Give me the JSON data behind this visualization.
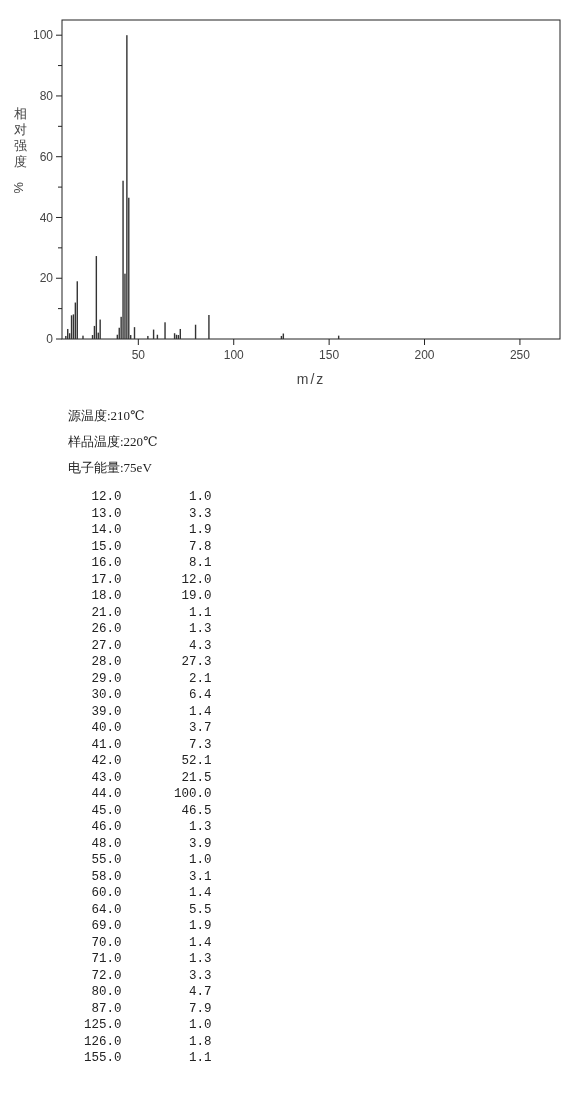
{
  "chart_data": {
    "type": "bar",
    "xlabel": "m/z",
    "ylabel": "相对强度%",
    "x": [
      12,
      13,
      14,
      15,
      16,
      17,
      18,
      21,
      26,
      27,
      28,
      29,
      30,
      39,
      40,
      41,
      42,
      43,
      44,
      45,
      46,
      48,
      55,
      58,
      60,
      64,
      69,
      70,
      71,
      72,
      80,
      87,
      125,
      126,
      155
    ],
    "values": [
      1.0,
      3.3,
      1.9,
      7.8,
      8.1,
      12.0,
      19.0,
      1.1,
      1.3,
      4.3,
      27.3,
      2.1,
      6.4,
      1.4,
      3.7,
      7.3,
      52.1,
      21.5,
      100.0,
      46.5,
      1.3,
      3.9,
      1.0,
      3.1,
      1.4,
      5.5,
      1.9,
      1.4,
      1.3,
      3.3,
      4.7,
      7.9,
      1.0,
      1.8,
      1.1
    ],
    "color": "#333333",
    "xlim": [
      10,
      271
    ],
    "xticks": [
      50,
      100,
      150,
      200,
      250
    ],
    "ylim": [
      0,
      105
    ],
    "yticks": [
      0,
      {
        "value": 10,
        "label": null
      },
      20,
      {
        "value": 30,
        "label": null
      },
      40,
      {
        "value": 50,
        "label": null
      },
      60,
      {
        "value": 70,
        "label": null
      },
      80,
      {
        "value": 90,
        "label": null
      },
      100
    ],
    "annotations": [
      "源温度:210℃",
      "样品温度:220℃",
      "电子能量:75eV",
      " 12.0         1.0",
      " 13.0         3.3",
      " 14.0         1.9",
      " 15.0         7.8",
      " 16.0         8.1",
      " 17.0        12.0",
      " 18.0        19.0",
      " 21.0         1.1",
      " 26.0         1.3",
      " 27.0         4.3",
      " 28.0        27.3",
      " 29.0         2.1",
      " 30.0         6.4",
      " 39.0         1.4",
      " 40.0         3.7",
      " 41.0         7.3",
      " 42.0        52.1",
      " 43.0        21.5",
      " 44.0       100.0",
      " 45.0        46.5",
      " 46.0         1.3",
      " 48.0         3.9",
      " 55.0         1.0",
      " 58.0         3.1",
      " 60.0         1.4",
      " 64.0         5.5",
      " 69.0         1.9",
      " 70.0         1.4",
      " 71.0         1.3",
      " 72.0         3.3",
      " 80.0         4.7",
      " 87.0         7.9",
      "125.0         1.0",
      "126.0         1.8",
      "155.0         1.1"
    ]
  }
}
